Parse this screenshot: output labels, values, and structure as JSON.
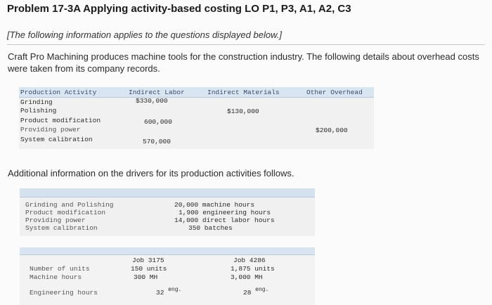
{
  "title": "Problem 17-3A Applying activity-based costing LO P1, P3, A1, A2, C3",
  "subtitle": "[The following information applies to the questions displayed below.]",
  "intro": "Craft Pro Machining produces machine tools for the construction industry. The following details about overhead costs were taken from its company records.",
  "overhead_table": {
    "headers": [
      "Production Activity",
      "Indirect Labor",
      "Indirect Materials",
      "Other Overhead"
    ],
    "rows": [
      {
        "activity": "Grinding",
        "labor": "$330,000",
        "materials": "",
        "other": ""
      },
      {
        "activity": "Polishing",
        "labor": "",
        "materials": "$130,000",
        "other": ""
      },
      {
        "activity": "Product modification",
        "labor": "600,000",
        "materials": "",
        "other": ""
      },
      {
        "activity": "Providing power",
        "labor": "",
        "materials": "",
        "other": "$200,000"
      },
      {
        "activity": "System calibration",
        "labor": "570,000",
        "materials": "",
        "other": ""
      }
    ]
  },
  "additional_info": "Additional information on the drivers for its production activities follows.",
  "drivers_table": {
    "rows": [
      {
        "activity": "Grinding and Polishing",
        "driver": "20,000 machine hours"
      },
      {
        "activity": "Product modification",
        "driver": "1,900 engineering hours"
      },
      {
        "activity": "Providing power",
        "driver": "14,000 direct labor hours"
      },
      {
        "activity": "System calibration",
        "driver": "350 batches"
      }
    ]
  },
  "jobs_table": {
    "job1": "Job 3175",
    "job2": "Job 4286",
    "rows": [
      {
        "label": "Number of units",
        "v1": "150 units",
        "v2": "1,875 units"
      },
      {
        "label": "Machine hours",
        "v1": "300 MH",
        "v2": "3,000 MH"
      },
      {
        "label": "Engineering hours",
        "v1_num": "32",
        "v1_unit": "eng.",
        "v2_num": "28",
        "v2_unit": "eng."
      }
    ]
  }
}
